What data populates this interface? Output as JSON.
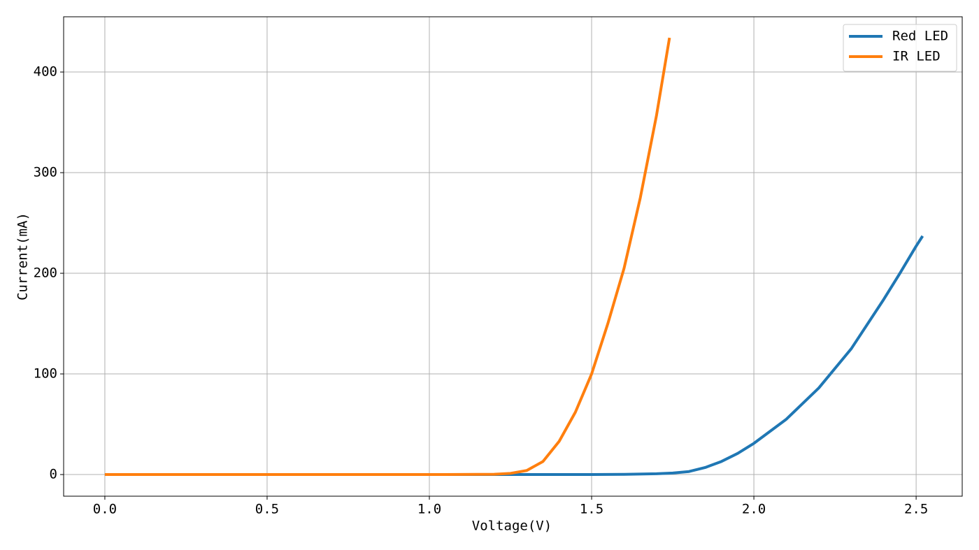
{
  "chart_data": {
    "type": "line",
    "xlabel": "Voltage(V)",
    "ylabel": "Current(mA)",
    "series": [
      {
        "name": "Red LED",
        "color": "#1f77b4",
        "x": [
          0,
          0.5,
          1.0,
          1.5,
          1.6,
          1.7,
          1.75,
          1.8,
          1.85,
          1.9,
          1.95,
          2.0,
          2.1,
          2.2,
          2.3,
          2.4,
          2.45,
          2.5,
          2.52
        ],
        "values": [
          0,
          0,
          0,
          0,
          0.2,
          0.8,
          1.5,
          3,
          7,
          13,
          21,
          31,
          55,
          86,
          125,
          174,
          200,
          227,
          237
        ]
      },
      {
        "name": "IR LED",
        "color": "#ff7f0e",
        "x": [
          0,
          0.5,
          1.0,
          1.2,
          1.25,
          1.3,
          1.35,
          1.4,
          1.45,
          1.5,
          1.55,
          1.6,
          1.65,
          1.7,
          1.74
        ],
        "values": [
          0,
          0,
          0,
          0.3,
          1.2,
          4,
          13,
          33,
          62,
          100,
          150,
          205,
          275,
          357,
          434
        ]
      }
    ],
    "xlim": [
      -0.127,
      2.642
    ],
    "ylim": [
      -21.5,
      454.9
    ],
    "xticks": [
      {
        "value": 0,
        "label": "0.0"
      },
      0.5,
      {
        "value": 1,
        "label": "1.0"
      },
      1.5,
      {
        "value": 2,
        "label": "2.0"
      },
      2.5
    ],
    "yticks": [
      0,
      100,
      200,
      300,
      400
    ],
    "grid": true,
    "legend": "upper-right"
  }
}
